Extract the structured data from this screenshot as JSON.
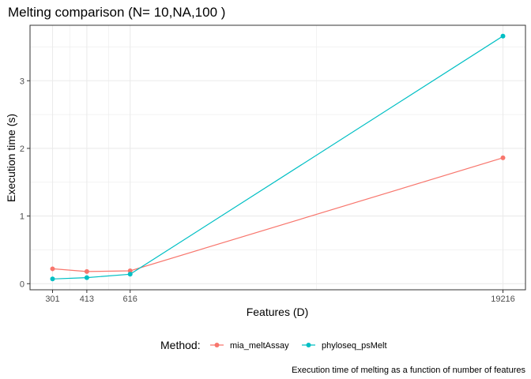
{
  "chart_data": {
    "type": "line",
    "title": "Melting comparison (N= 10,NA,100 )",
    "xlabel": "Features (D)",
    "ylabel": "Execution time (s)",
    "x": [
      301,
      413,
      616,
      19216
    ],
    "x_ticks": [
      301,
      413,
      616,
      19216
    ],
    "x_tick_labels": [
      "301",
      "413",
      "616",
      "19216"
    ],
    "x_scale": "log",
    "y_ticks": [
      0,
      1,
      2,
      3
    ],
    "y_tick_labels": [
      "0",
      "1",
      "2",
      "3"
    ],
    "ylim": [
      -0.09,
      3.82
    ],
    "grid": true,
    "legend_title": "Method:",
    "legend_position": "bottom",
    "caption": "Execution time of melting as a function of number of features",
    "series": [
      {
        "name": "mia_meltAssay",
        "color": "#F8766D",
        "values": [
          0.22,
          0.18,
          0.19,
          1.86
        ]
      },
      {
        "name": "phyloseq_psMelt",
        "color": "#00BFC4",
        "values": [
          0.07,
          0.09,
          0.14,
          3.66
        ]
      }
    ]
  }
}
